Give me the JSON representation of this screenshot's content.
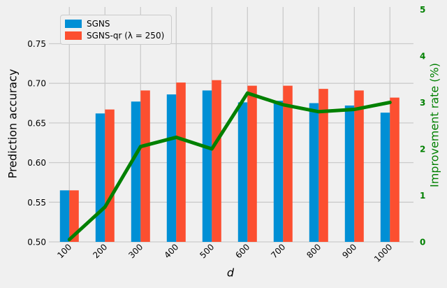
{
  "figure": {
    "background": "#f0f0f0",
    "grid_color": "#cbcbcb"
  },
  "legend": {
    "items": [
      {
        "label": "SGNS",
        "color": "#008fd5"
      },
      {
        "label": "SGNS-qr (λ = 250)",
        "color": "#fc4f30"
      }
    ]
  },
  "chart_data": {
    "type": "combo-bar-line",
    "title": "",
    "xlabel": "d",
    "categories": [
      "100",
      "200",
      "300",
      "400",
      "500",
      "600",
      "700",
      "800",
      "900",
      "1000"
    ],
    "series": [
      {
        "name": "SGNS",
        "type": "bar",
        "axis": "left",
        "color": "#008fd5",
        "values": [
          0.565,
          0.662,
          0.677,
          0.686,
          0.691,
          0.676,
          0.678,
          0.675,
          0.672,
          0.663
        ]
      },
      {
        "name": "SGNS-qr (λ = 250)",
        "type": "bar",
        "axis": "left",
        "color": "#fc4f30",
        "values": [
          0.565,
          0.667,
          0.691,
          0.701,
          0.704,
          0.697,
          0.697,
          0.693,
          0.691,
          0.682
        ]
      },
      {
        "name": "Improvement rate",
        "type": "line",
        "axis": "right",
        "color": "#008000",
        "values": [
          0.05,
          0.75,
          2.05,
          2.25,
          2.0,
          3.2,
          2.95,
          2.8,
          2.85,
          3.0
        ]
      }
    ],
    "left_axis": {
      "label": "Prediction accuracy",
      "ticks": [
        0.5,
        0.55,
        0.6,
        0.65,
        0.7,
        0.75
      ],
      "tick_labels": [
        "0.50",
        "0.55",
        "0.60",
        "0.65",
        "0.70",
        "0.75"
      ],
      "range": [
        0.5,
        0.7963
      ],
      "color": "#000000"
    },
    "right_axis": {
      "label": "Improvement rate (%)",
      "ticks": [
        0,
        1,
        2,
        3,
        4,
        5
      ],
      "tick_labels": [
        "0",
        "1",
        "2",
        "3",
        "4",
        "5"
      ],
      "range": [
        0,
        5.053
      ],
      "color": "#008000"
    },
    "grid": true,
    "legend_position": "upper left"
  }
}
